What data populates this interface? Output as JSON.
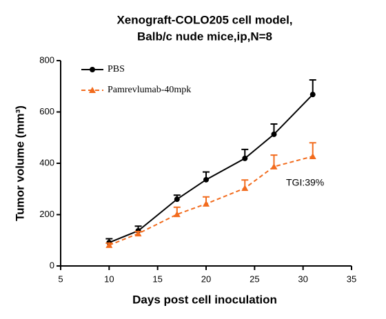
{
  "chart_data": {
    "type": "line",
    "title": [
      "Xenograft-COLO205 cell model,",
      "Balb/c nude mice,ip,N=8"
    ],
    "x_label": "Days post cell inoculation",
    "y_label": "Tumor volume (mm³)",
    "annotation": "TGI:39%",
    "xlim": [
      5,
      35
    ],
    "xticks": [
      5,
      10,
      15,
      20,
      25,
      30,
      35
    ],
    "ylim": [
      0,
      800
    ],
    "yticks": [
      0,
      200,
      400,
      600,
      800
    ],
    "x": [
      10,
      13,
      17,
      20,
      24,
      27,
      31
    ],
    "legend": "upper left",
    "series": [
      {
        "name": "PBS",
        "color": "#000000",
        "marker": "circle",
        "dashed": false,
        "values": [
          91,
          137,
          260,
          336,
          419,
          513,
          668
        ],
        "errors": [
          15,
          18,
          16,
          30,
          35,
          40,
          57
        ]
      },
      {
        "name": "Pamrevlumab-40mpk",
        "color": "#f26b1d",
        "marker": "triangle",
        "dashed": true,
        "values": [
          81,
          126,
          201,
          242,
          303,
          387,
          427
        ],
        "errors": [
          8,
          8,
          28,
          27,
          32,
          45,
          53
        ]
      }
    ]
  }
}
